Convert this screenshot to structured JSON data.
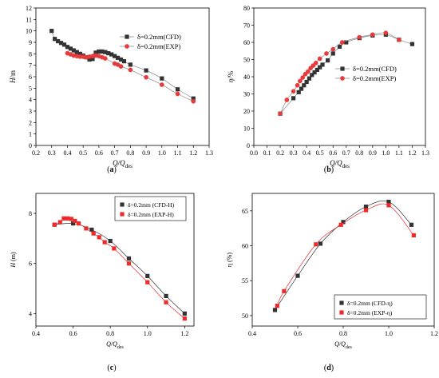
{
  "chart_data": [
    {
      "panel": "(a)",
      "type": "scatter",
      "ylabel_main": "H",
      "ylabel_unit": "/m",
      "xlabel_main": "Q/Q",
      "xlabel_sub": "des",
      "xlim": [
        0.2,
        1.3
      ],
      "ylim": [
        0,
        12
      ],
      "xticks": [
        "0.2",
        "0.3",
        "0.4",
        "0.5",
        "0.6",
        "0.7",
        "0.8",
        "0.9",
        "1.0",
        "1.1",
        "1.2",
        "1.3"
      ],
      "yticks": [
        "0",
        "1",
        "2",
        "3",
        "4",
        "5",
        "6",
        "7",
        "8",
        "9",
        "10",
        "11",
        "12"
      ],
      "xtickvals": [
        0.2,
        0.3,
        0.4,
        0.5,
        0.6,
        0.7,
        0.8,
        0.9,
        1.0,
        1.1,
        1.2,
        1.3
      ],
      "ytickvals": [
        0,
        1,
        2,
        3,
        4,
        5,
        6,
        7,
        8,
        9,
        10,
        11,
        12
      ],
      "grid": false,
      "legend_position": "top-right",
      "series": [
        {
          "name": "δ=0.2mm(CFD)",
          "marker": "square",
          "color": "#333333",
          "points": [
            [
              0.3,
              10.0
            ],
            [
              0.32,
              9.3
            ],
            [
              0.34,
              9.1
            ],
            [
              0.36,
              8.95
            ],
            [
              0.38,
              8.8
            ],
            [
              0.4,
              8.6
            ],
            [
              0.42,
              8.45
            ],
            [
              0.44,
              8.3
            ],
            [
              0.46,
              8.15
            ],
            [
              0.48,
              8.0
            ],
            [
              0.5,
              7.85
            ],
            [
              0.52,
              7.7
            ],
            [
              0.54,
              7.5
            ],
            [
              0.56,
              7.55
            ],
            [
              0.58,
              8.1
            ],
            [
              0.6,
              8.2
            ],
            [
              0.62,
              8.2
            ],
            [
              0.64,
              8.15
            ],
            [
              0.66,
              8.05
            ],
            [
              0.68,
              7.95
            ],
            [
              0.7,
              7.8
            ],
            [
              0.72,
              7.65
            ],
            [
              0.74,
              7.5
            ],
            [
              0.76,
              7.35
            ],
            [
              0.8,
              7.05
            ],
            [
              0.9,
              6.55
            ],
            [
              1.0,
              5.85
            ],
            [
              1.1,
              4.9
            ],
            [
              1.2,
              4.1
            ]
          ]
        },
        {
          "name": "δ=0.2mm(EXP)",
          "marker": "circle",
          "color": "#e8393b",
          "points": [
            [
              0.4,
              8.05
            ],
            [
              0.42,
              7.95
            ],
            [
              0.44,
              7.85
            ],
            [
              0.46,
              7.8
            ],
            [
              0.48,
              7.75
            ],
            [
              0.5,
              7.75
            ],
            [
              0.52,
              7.7
            ],
            [
              0.54,
              7.75
            ],
            [
              0.56,
              7.8
            ],
            [
              0.58,
              7.85
            ],
            [
              0.6,
              7.8
            ],
            [
              0.62,
              7.7
            ],
            [
              0.64,
              7.6
            ],
            [
              0.7,
              7.15
            ],
            [
              0.72,
              7.05
            ],
            [
              0.74,
              6.9
            ],
            [
              0.8,
              6.6
            ],
            [
              0.9,
              5.95
            ],
            [
              1.0,
              5.3
            ],
            [
              1.1,
              4.5
            ],
            [
              1.2,
              3.85
            ]
          ]
        }
      ]
    },
    {
      "panel": "(b)",
      "type": "scatter",
      "ylabel_main": "η",
      "ylabel_unit": "/%",
      "xlabel_main": "Q/Q",
      "xlabel_sub": "des",
      "xlim": [
        0.0,
        1.3
      ],
      "ylim": [
        0,
        80
      ],
      "xticks": [
        "0.0",
        "0.1",
        "0.2",
        "0.3",
        "0.4",
        "0.5",
        "0.6",
        "0.7",
        "0.8",
        "0.9",
        "1.0",
        "1.1",
        "1.2",
        "1.3"
      ],
      "yticks": [
        "0",
        "10",
        "20",
        "30",
        "40",
        "50",
        "60",
        "70",
        "80"
      ],
      "xtickvals": [
        0.0,
        0.1,
        0.2,
        0.3,
        0.4,
        0.5,
        0.6,
        0.7,
        0.8,
        0.9,
        1.0,
        1.1,
        1.2,
        1.3
      ],
      "ytickvals": [
        0,
        10,
        20,
        30,
        40,
        50,
        60,
        70,
        80
      ],
      "grid": false,
      "legend_position": "center-right",
      "series": [
        {
          "name": "δ=0.2mm(CFD)",
          "marker": "square",
          "color": "#333333",
          "points": [
            [
              0.2,
              18.5
            ],
            [
              0.3,
              27.5
            ],
            [
              0.34,
              31
            ],
            [
              0.36,
              33
            ],
            [
              0.38,
              35
            ],
            [
              0.4,
              37
            ],
            [
              0.42,
              39
            ],
            [
              0.44,
              41
            ],
            [
              0.46,
              42.5
            ],
            [
              0.48,
              44
            ],
            [
              0.5,
              45.5
            ],
            [
              0.52,
              47
            ],
            [
              0.56,
              49.5
            ],
            [
              0.6,
              53.5
            ],
            [
              0.65,
              57.5
            ],
            [
              0.7,
              60
            ],
            [
              0.8,
              62.5
            ],
            [
              0.9,
              64
            ],
            [
              1.0,
              64.5
            ],
            [
              1.1,
              61.5
            ],
            [
              1.2,
              59
            ]
          ]
        },
        {
          "name": "δ=0.2mm(EXP)",
          "marker": "circle",
          "color": "#e8393b",
          "points": [
            [
              0.2,
              18.5
            ],
            [
              0.25,
              26.5
            ],
            [
              0.3,
              31.5
            ],
            [
              0.33,
              35
            ],
            [
              0.35,
              37.5
            ],
            [
              0.37,
              39.5
            ],
            [
              0.39,
              41.5
            ],
            [
              0.41,
              43
            ],
            [
              0.43,
              45
            ],
            [
              0.45,
              46.5
            ],
            [
              0.47,
              48
            ],
            [
              0.5,
              50.5
            ],
            [
              0.55,
              53.5
            ],
            [
              0.6,
              56
            ],
            [
              0.67,
              60
            ],
            [
              0.8,
              63
            ],
            [
              0.9,
              64.5
            ],
            [
              1.0,
              65.5
            ],
            [
              1.1,
              61.5
            ]
          ]
        }
      ]
    },
    {
      "panel": "(c)",
      "type": "scatter",
      "ylabel_main": "H",
      "ylabel_unit": " (m)",
      "xlabel_main": "Q/Q",
      "xlabel_sub": "des",
      "xlim": [
        0.4,
        1.25
      ],
      "ylim": [
        3.5,
        8.8
      ],
      "xticks": [
        "0.4",
        "0.6",
        "0.8",
        "1.0",
        "1.2"
      ],
      "yticks": [
        "4",
        "6",
        "8"
      ],
      "xtickvals": [
        0.4,
        0.6,
        0.8,
        1.0,
        1.2
      ],
      "ytickvals": [
        4,
        6,
        8
      ],
      "grid": false,
      "legend_position": "top-right",
      "series": [
        {
          "name": "δ=0.2mm (CFD-H)",
          "marker": "square",
          "color": "#333333",
          "points": [
            [
              0.5,
              7.55
            ],
            [
              0.6,
              7.6
            ],
            [
              0.7,
              7.35
            ],
            [
              0.8,
              6.9
            ],
            [
              0.9,
              6.2
            ],
            [
              1.0,
              5.5
            ],
            [
              1.1,
              4.7
            ],
            [
              1.2,
              4.0
            ]
          ]
        },
        {
          "name": "δ=0.2mm (EXP-H)",
          "marker": "square",
          "color": "#ee2a2a",
          "points": [
            [
              0.5,
              7.55
            ],
            [
              0.53,
              7.65
            ],
            [
              0.55,
              7.8
            ],
            [
              0.57,
              7.8
            ],
            [
              0.59,
              7.78
            ],
            [
              0.61,
              7.7
            ],
            [
              0.63,
              7.6
            ],
            [
              0.67,
              7.4
            ],
            [
              0.71,
              7.2
            ],
            [
              0.74,
              7.05
            ],
            [
              0.77,
              6.85
            ],
            [
              0.82,
              6.6
            ],
            [
              0.9,
              6.0
            ],
            [
              1.0,
              5.25
            ],
            [
              1.1,
              4.45
            ],
            [
              1.2,
              3.8
            ]
          ]
        }
      ]
    },
    {
      "panel": "(d)",
      "type": "scatter",
      "ylabel_main": "η (%)",
      "ylabel_unit": "",
      "xlabel_main": "Q/Q",
      "xlabel_sub": "des",
      "xlim": [
        0.4,
        1.2
      ],
      "ylim": [
        48.5,
        67.5
      ],
      "xticks": [
        "0.4",
        "0.6",
        "0.8",
        "1.0",
        "1.2"
      ],
      "yticks": [
        "50",
        "55",
        "60",
        "65"
      ],
      "xtickvals": [
        0.4,
        0.6,
        0.8,
        1.0,
        1.2
      ],
      "ytickvals": [
        50,
        55,
        60,
        65
      ],
      "grid": false,
      "legend_position": "bottom-right",
      "series": [
        {
          "name": "δ=0.2mm (CFD-η)",
          "marker": "square",
          "color": "#333333",
          "points": [
            [
              0.5,
              50.8
            ],
            [
              0.6,
              55.7
            ],
            [
              0.7,
              60.3
            ],
            [
              0.8,
              63.4
            ],
            [
              0.9,
              65.6
            ],
            [
              1.0,
              66.3
            ],
            [
              1.1,
              63.0
            ]
          ]
        },
        {
          "name": "δ=0.2mm (EXP-η)",
          "marker": "square",
          "color": "#ee2a2a",
          "points": [
            [
              0.51,
              51.4
            ],
            [
              0.54,
              53.5
            ],
            [
              0.68,
              60.2
            ],
            [
              0.79,
              63.0
            ],
            [
              0.9,
              65.1
            ],
            [
              1.0,
              65.8
            ],
            [
              1.11,
              61.5
            ]
          ]
        }
      ]
    }
  ]
}
